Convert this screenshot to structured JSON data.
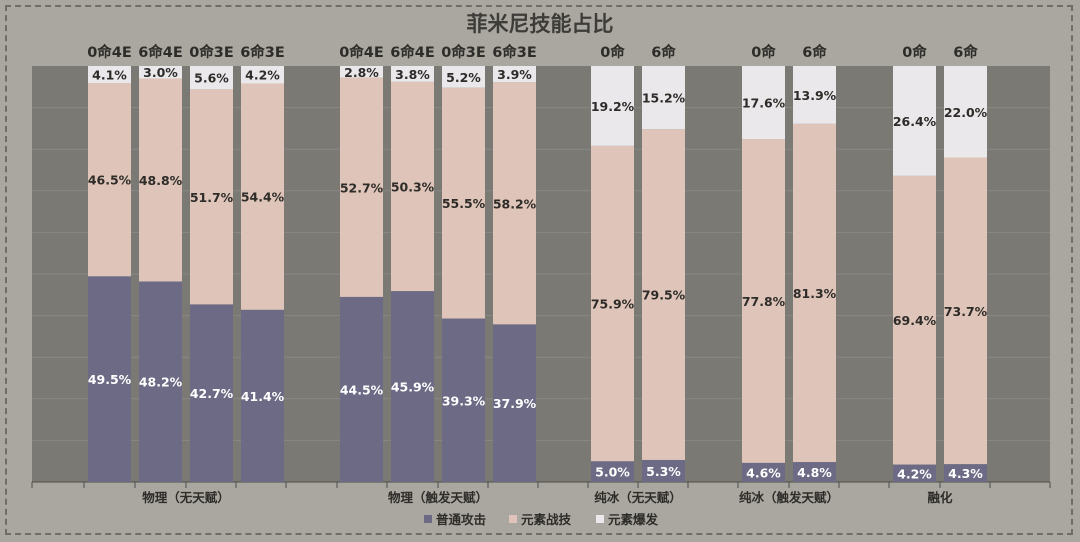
{
  "title": "菲米尼技能占比",
  "colors": {
    "normal": "#6c6a85",
    "skill": "#dfc5b9",
    "burst": "#eae8ea",
    "plot_bg": "#7b7974",
    "text_dark": "#3e3c38"
  },
  "chart_data": {
    "type": "bar",
    "stacked": true,
    "normalized": true,
    "title": "菲米尼技能占比",
    "legend_position": "bottom",
    "series_names": [
      "普通攻击",
      "元素战技",
      "元素爆发"
    ],
    "groups": [
      {
        "label": "物理（无天赋）",
        "bars": [
          {
            "label": "0命4E",
            "values": [
              49.5,
              46.5,
              4.1
            ]
          },
          {
            "label": "6命4E",
            "values": [
              48.2,
              48.8,
              3.0
            ]
          },
          {
            "label": "0命3E",
            "values": [
              42.7,
              51.7,
              5.6
            ]
          },
          {
            "label": "6命3E",
            "values": [
              41.4,
              54.4,
              4.2
            ]
          }
        ]
      },
      {
        "label": "物理（触发天赋）",
        "bars": [
          {
            "label": "0命4E",
            "values": [
              44.5,
              52.7,
              2.8
            ]
          },
          {
            "label": "6命4E",
            "values": [
              45.9,
              50.3,
              3.8
            ]
          },
          {
            "label": "0命3E",
            "values": [
              39.3,
              55.5,
              5.2
            ]
          },
          {
            "label": "6命3E",
            "values": [
              37.9,
              58.2,
              3.9
            ]
          }
        ]
      },
      {
        "label": "纯冰（无天赋）",
        "bars": [
          {
            "label": "0命",
            "values": [
              5.0,
              75.9,
              19.2
            ]
          },
          {
            "label": "6命",
            "values": [
              5.3,
              79.5,
              15.2
            ]
          }
        ]
      },
      {
        "label": "纯冰（触发天赋）",
        "bars": [
          {
            "label": "0命",
            "values": [
              4.6,
              77.8,
              17.6
            ]
          },
          {
            "label": "6命",
            "values": [
              4.8,
              81.3,
              13.9
            ]
          }
        ]
      },
      {
        "label": "融化",
        "bars": [
          {
            "label": "0命",
            "values": [
              4.2,
              69.4,
              26.4
            ]
          },
          {
            "label": "6命",
            "values": [
              4.3,
              73.7,
              22.0
            ]
          }
        ]
      }
    ]
  }
}
